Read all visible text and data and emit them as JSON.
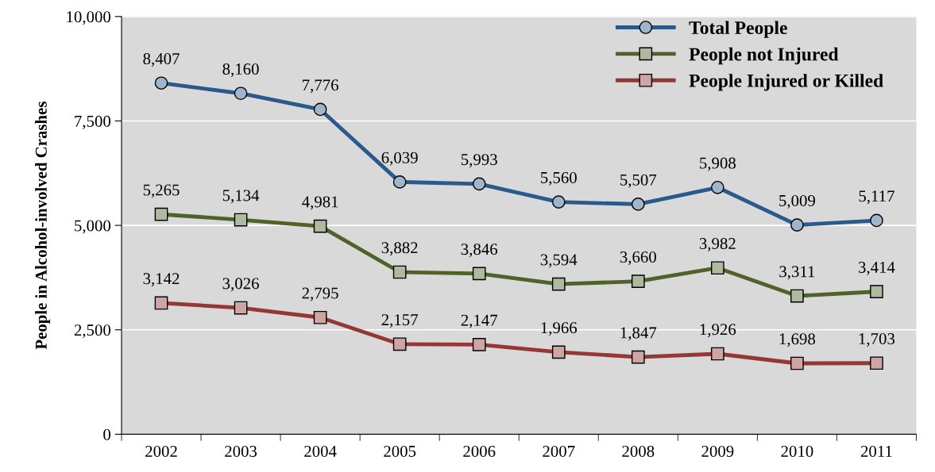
{
  "chart_data": {
    "type": "line",
    "ylabel": "People in Alcohol-involved Crashes",
    "categories": [
      "2002",
      "2003",
      "2004",
      "2005",
      "2006",
      "2007",
      "2008",
      "2009",
      "2010",
      "2011"
    ],
    "series": [
      {
        "name": "Total People",
        "color": "#2a5a8c",
        "marker": "circle",
        "values": [
          8407,
          8160,
          7776,
          6039,
          5993,
          5560,
          5507,
          5908,
          5009,
          5117
        ],
        "value_labels": [
          "8,407",
          "8,160",
          "7,776",
          "6,039",
          "5,993",
          "5,560",
          "5,507",
          "5,908",
          "5,009",
          "5,117"
        ]
      },
      {
        "name": "People not Injured",
        "color": "#4f6228",
        "marker": "square",
        "values": [
          5265,
          5134,
          4981,
          3882,
          3846,
          3594,
          3660,
          3982,
          3311,
          3414
        ],
        "value_labels": [
          "5,265",
          "5,134",
          "4,981",
          "3,882",
          "3,846",
          "3,594",
          "3,660",
          "3,982",
          "3,311",
          "3,414"
        ]
      },
      {
        "name": "People Injured or Killed",
        "color": "#953735",
        "marker": "square",
        "values": [
          3142,
          3026,
          2795,
          2157,
          2147,
          1966,
          1847,
          1926,
          1698,
          1703
        ],
        "value_labels": [
          "3,142",
          "3,026",
          "2,795",
          "2,157",
          "2,147",
          "1,966",
          "1,847",
          "1,926",
          "1,698",
          "1,703"
        ]
      }
    ],
    "ylim": [
      0,
      10000
    ],
    "yticks": [
      0,
      {
        "value": 2500,
        "label": "2,500"
      },
      {
        "value": 5000,
        "label": "5,000"
      },
      {
        "value": 7500,
        "label": "7,500"
      },
      {
        "value": 10000,
        "label": "10,000"
      }
    ],
    "grid": "y",
    "legend": "top right",
    "line_style": "solid"
  }
}
